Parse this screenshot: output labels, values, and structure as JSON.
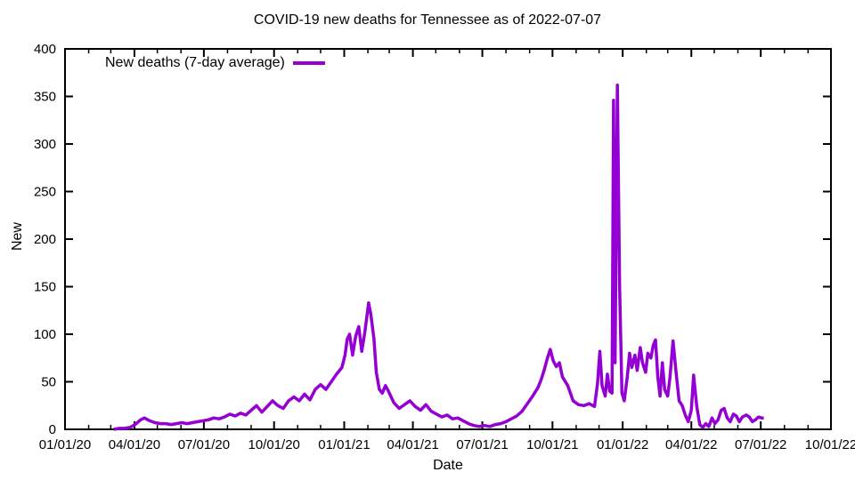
{
  "page": {
    "title": "COVID-19 new deaths for Tennessee as of 2022-07-07"
  },
  "colors": {
    "line": "#9400d3",
    "border": "#000000",
    "background": "#ffffff"
  },
  "chart_data": {
    "type": "line",
    "title": "COVID-19 new deaths for Tennessee as of 2022-07-07",
    "xlabel": "Date",
    "ylabel": "New",
    "ylim": [
      0,
      400
    ],
    "x_range": [
      "2020-01-01",
      "2022-10-01"
    ],
    "grid": false,
    "yticks": [
      0,
      50,
      100,
      150,
      200,
      250,
      300,
      350,
      400
    ],
    "xticks": [
      {
        "date": "2020-01-01",
        "label": "01/01/20"
      },
      {
        "date": "2020-04-01",
        "label": "04/01/20"
      },
      {
        "date": "2020-07-01",
        "label": "07/01/20"
      },
      {
        "date": "2020-10-01",
        "label": "10/01/20"
      },
      {
        "date": "2021-01-01",
        "label": "01/01/21"
      },
      {
        "date": "2021-04-01",
        "label": "04/01/21"
      },
      {
        "date": "2021-07-01",
        "label": "07/01/21"
      },
      {
        "date": "2021-10-01",
        "label": "10/01/21"
      },
      {
        "date": "2022-01-01",
        "label": "01/01/22"
      },
      {
        "date": "2022-04-01",
        "label": "04/01/22"
      },
      {
        "date": "2022-07-01",
        "label": "07/01/22"
      },
      {
        "date": "2022-10-01",
        "label": "10/01/22"
      }
    ],
    "minor_x_tick_interval": "month",
    "legend": {
      "position": "top-left",
      "entries": [
        {
          "label": "New deaths (7-day average)",
          "color": "#9400d3"
        }
      ]
    },
    "series": [
      {
        "name": "New deaths (7-day average)",
        "color": "#9400d3",
        "points": [
          [
            "2020-03-05",
            0
          ],
          [
            "2020-03-12",
            1
          ],
          [
            "2020-03-19",
            1
          ],
          [
            "2020-03-26",
            2
          ],
          [
            "2020-04-02",
            5
          ],
          [
            "2020-04-09",
            10
          ],
          [
            "2020-04-14",
            12
          ],
          [
            "2020-04-21",
            9
          ],
          [
            "2020-04-28",
            7
          ],
          [
            "2020-05-05",
            6
          ],
          [
            "2020-05-12",
            6
          ],
          [
            "2020-05-19",
            5
          ],
          [
            "2020-05-26",
            6
          ],
          [
            "2020-06-02",
            7
          ],
          [
            "2020-06-09",
            6
          ],
          [
            "2020-06-16",
            7
          ],
          [
            "2020-06-23",
            8
          ],
          [
            "2020-06-30",
            9
          ],
          [
            "2020-07-07",
            10
          ],
          [
            "2020-07-14",
            12
          ],
          [
            "2020-07-21",
            11
          ],
          [
            "2020-07-28",
            13
          ],
          [
            "2020-08-04",
            16
          ],
          [
            "2020-08-11",
            14
          ],
          [
            "2020-08-18",
            17
          ],
          [
            "2020-08-25",
            15
          ],
          [
            "2020-09-01",
            20
          ],
          [
            "2020-09-08",
            25
          ],
          [
            "2020-09-15",
            18
          ],
          [
            "2020-09-22",
            24
          ],
          [
            "2020-09-29",
            30
          ],
          [
            "2020-10-06",
            25
          ],
          [
            "2020-10-13",
            22
          ],
          [
            "2020-10-20",
            30
          ],
          [
            "2020-10-27",
            34
          ],
          [
            "2020-11-03",
            30
          ],
          [
            "2020-11-10",
            37
          ],
          [
            "2020-11-17",
            31
          ],
          [
            "2020-11-24",
            42
          ],
          [
            "2020-12-01",
            47
          ],
          [
            "2020-12-08",
            42
          ],
          [
            "2020-12-15",
            50
          ],
          [
            "2020-12-22",
            58
          ],
          [
            "2020-12-29",
            65
          ],
          [
            "2021-01-02",
            78
          ],
          [
            "2021-01-05",
            95
          ],
          [
            "2021-01-08",
            100
          ],
          [
            "2021-01-12",
            78
          ],
          [
            "2021-01-16",
            98
          ],
          [
            "2021-01-20",
            108
          ],
          [
            "2021-01-24",
            82
          ],
          [
            "2021-01-28",
            102
          ],
          [
            "2021-02-02",
            133
          ],
          [
            "2021-02-05",
            120
          ],
          [
            "2021-02-09",
            95
          ],
          [
            "2021-02-12",
            60
          ],
          [
            "2021-02-16",
            42
          ],
          [
            "2021-02-20",
            38
          ],
          [
            "2021-02-24",
            46
          ],
          [
            "2021-02-28",
            40
          ],
          [
            "2021-03-07",
            28
          ],
          [
            "2021-03-14",
            22
          ],
          [
            "2021-03-21",
            26
          ],
          [
            "2021-03-28",
            30
          ],
          [
            "2021-04-04",
            24
          ],
          [
            "2021-04-11",
            20
          ],
          [
            "2021-04-18",
            26
          ],
          [
            "2021-04-25",
            19
          ],
          [
            "2021-05-02",
            16
          ],
          [
            "2021-05-09",
            13
          ],
          [
            "2021-05-16",
            15
          ],
          [
            "2021-05-23",
            11
          ],
          [
            "2021-05-30",
            12
          ],
          [
            "2021-06-06",
            9
          ],
          [
            "2021-06-13",
            6
          ],
          [
            "2021-06-20",
            4
          ],
          [
            "2021-06-27",
            3
          ],
          [
            "2021-07-04",
            4
          ],
          [
            "2021-07-11",
            3
          ],
          [
            "2021-07-18",
            5
          ],
          [
            "2021-07-25",
            6
          ],
          [
            "2021-08-01",
            8
          ],
          [
            "2021-08-08",
            11
          ],
          [
            "2021-08-15",
            14
          ],
          [
            "2021-08-22",
            19
          ],
          [
            "2021-08-29",
            27
          ],
          [
            "2021-09-05",
            35
          ],
          [
            "2021-09-12",
            44
          ],
          [
            "2021-09-16",
            52
          ],
          [
            "2021-09-20",
            62
          ],
          [
            "2021-09-24",
            74
          ],
          [
            "2021-09-28",
            84
          ],
          [
            "2021-10-02",
            72
          ],
          [
            "2021-10-06",
            66
          ],
          [
            "2021-10-10",
            70
          ],
          [
            "2021-10-14",
            55
          ],
          [
            "2021-10-21",
            46
          ],
          [
            "2021-10-28",
            30
          ],
          [
            "2021-11-04",
            26
          ],
          [
            "2021-11-11",
            25
          ],
          [
            "2021-11-18",
            27
          ],
          [
            "2021-11-25",
            24
          ],
          [
            "2021-11-29",
            48
          ],
          [
            "2021-12-02",
            82
          ],
          [
            "2021-12-05",
            46
          ],
          [
            "2021-12-09",
            35
          ],
          [
            "2021-12-12",
            58
          ],
          [
            "2021-12-15",
            40
          ],
          [
            "2021-12-18",
            38
          ],
          [
            "2021-12-20",
            346
          ],
          [
            "2021-12-22",
            70
          ],
          [
            "2021-12-25",
            362
          ],
          [
            "2021-12-28",
            150
          ],
          [
            "2021-12-31",
            38
          ],
          [
            "2022-01-03",
            30
          ],
          [
            "2022-01-07",
            55
          ],
          [
            "2022-01-10",
            80
          ],
          [
            "2022-01-13",
            65
          ],
          [
            "2022-01-17",
            78
          ],
          [
            "2022-01-20",
            62
          ],
          [
            "2022-01-24",
            86
          ],
          [
            "2022-01-27",
            70
          ],
          [
            "2022-01-31",
            60
          ],
          [
            "2022-02-03",
            80
          ],
          [
            "2022-02-07",
            75
          ],
          [
            "2022-02-10",
            88
          ],
          [
            "2022-02-13",
            94
          ],
          [
            "2022-02-16",
            55
          ],
          [
            "2022-02-19",
            35
          ],
          [
            "2022-02-22",
            70
          ],
          [
            "2022-02-25",
            42
          ],
          [
            "2022-03-01",
            35
          ],
          [
            "2022-03-04",
            55
          ],
          [
            "2022-03-08",
            93
          ],
          [
            "2022-03-12",
            60
          ],
          [
            "2022-03-16",
            30
          ],
          [
            "2022-03-20",
            25
          ],
          [
            "2022-03-24",
            15
          ],
          [
            "2022-03-28",
            8
          ],
          [
            "2022-04-01",
            20
          ],
          [
            "2022-04-04",
            57
          ],
          [
            "2022-04-08",
            25
          ],
          [
            "2022-04-12",
            5
          ],
          [
            "2022-04-16",
            2
          ],
          [
            "2022-04-20",
            6
          ],
          [
            "2022-04-24",
            3
          ],
          [
            "2022-04-28",
            12
          ],
          [
            "2022-05-02",
            6
          ],
          [
            "2022-05-06",
            10
          ],
          [
            "2022-05-10",
            20
          ],
          [
            "2022-05-14",
            22
          ],
          [
            "2022-05-18",
            12
          ],
          [
            "2022-05-22",
            8
          ],
          [
            "2022-05-26",
            16
          ],
          [
            "2022-05-30",
            14
          ],
          [
            "2022-06-03",
            8
          ],
          [
            "2022-06-07",
            13
          ],
          [
            "2022-06-12",
            15
          ],
          [
            "2022-06-16",
            13
          ],
          [
            "2022-06-20",
            8
          ],
          [
            "2022-06-24",
            10
          ],
          [
            "2022-06-28",
            13
          ],
          [
            "2022-07-02",
            12
          ],
          [
            "2022-07-05",
            12
          ]
        ]
      }
    ]
  }
}
